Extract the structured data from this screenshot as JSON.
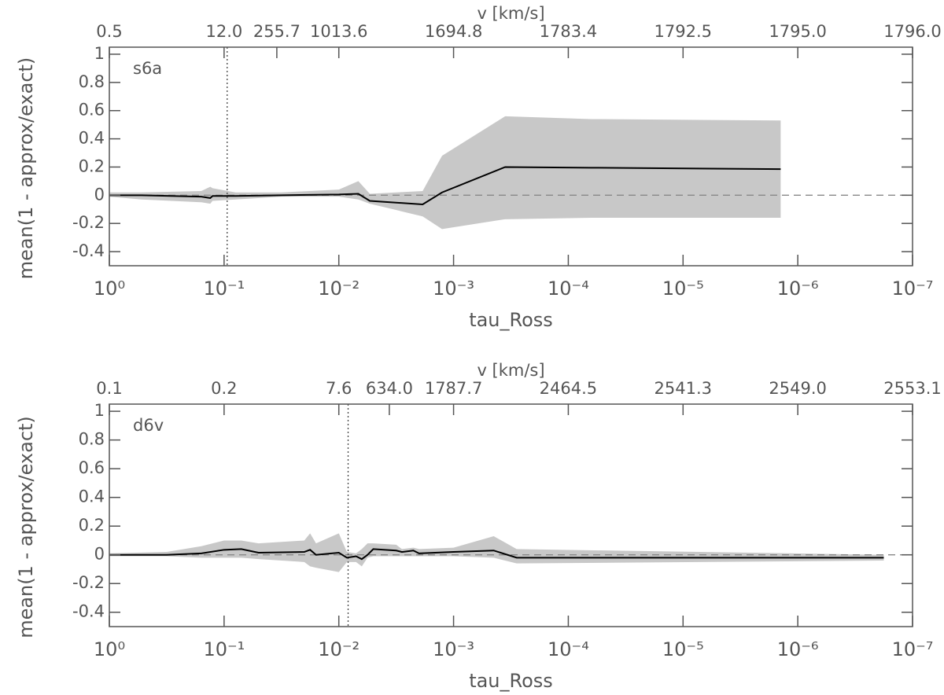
{
  "chart_data": [
    {
      "type": "line",
      "label": "s6a",
      "xlabel": "tau_Ross",
      "ylabel": "mean(1 - approx/exact)",
      "x2label": "v [km/s]",
      "xscale": "log",
      "xlim": [
        1,
        1e-07
      ],
      "ylim": [
        -0.5,
        1.05
      ],
      "xticks": [
        {
          "value": 1,
          "label": "10⁰"
        },
        {
          "value": 0.1,
          "label": "10⁻¹"
        },
        {
          "value": 0.01,
          "label": "10⁻²"
        },
        {
          "value": 0.001,
          "label": "10⁻³"
        },
        {
          "value": 0.0001,
          "label": "10⁻⁴"
        },
        {
          "value": 1e-05,
          "label": "10⁻⁵"
        },
        {
          "value": 1e-06,
          "label": "10⁻⁶"
        },
        {
          "value": 1e-07,
          "label": "10⁻⁷"
        }
      ],
      "x2ticks": [
        {
          "value": 1,
          "label": "0.5"
        },
        {
          "value": 0.1,
          "label": "12.0"
        },
        {
          "value": 0.0347,
          "label": "255.7"
        },
        {
          "value": 0.01,
          "label": "1013.6"
        },
        {
          "value": 0.001,
          "label": "1694.8"
        },
        {
          "value": 0.0001,
          "label": "1783.4"
        },
        {
          "value": 1e-05,
          "label": "1792.5"
        },
        {
          "value": 1e-06,
          "label": "1795.0"
        },
        {
          "value": 1e-07,
          "label": "1796.0"
        }
      ],
      "yticks": [
        -0.4,
        -0.2,
        0.0,
        0.2,
        0.4,
        0.6,
        0.8,
        1.0
      ],
      "hline": 0,
      "vline": 0.094,
      "color": "#000000",
      "band_color": "#c8c8c8",
      "x": [
        1,
        0.525,
        0.158,
        0.132,
        0.126,
        0.0794,
        0.0316,
        0.01,
        0.00676,
        0.00537,
        0.00186,
        0.00126,
        0.000355,
        6.31e-05,
        1.41e-06
      ],
      "values": [
        0,
        0,
        -0.01,
        -0.02,
        -0.005,
        -0.005,
        0,
        0.005,
        0.01,
        -0.04,
        -0.065,
        0.02,
        0.2,
        0.195,
        0.185
      ],
      "upper": [
        0.02,
        0.02,
        0.03,
        0.06,
        0.05,
        0.02,
        0.02,
        0.04,
        0.1,
        0.01,
        0.03,
        0.28,
        0.56,
        0.54,
        0.53
      ],
      "lower": [
        -0.01,
        -0.03,
        -0.05,
        -0.06,
        -0.04,
        -0.03,
        -0.01,
        -0.01,
        -0.03,
        -0.06,
        -0.15,
        -0.24,
        -0.17,
        -0.16,
        -0.16
      ]
    },
    {
      "type": "line",
      "label": "d6v",
      "xlabel": "tau_Ross",
      "ylabel": "mean(1 - approx/exact)",
      "x2label": "v [km/s]",
      "xscale": "log",
      "xlim": [
        1,
        1e-07
      ],
      "ylim": [
        -0.5,
        1.05
      ],
      "xticks": [
        {
          "value": 1,
          "label": "10⁰"
        },
        {
          "value": 0.1,
          "label": "10⁻¹"
        },
        {
          "value": 0.01,
          "label": "10⁻²"
        },
        {
          "value": 0.001,
          "label": "10⁻³"
        },
        {
          "value": 0.0001,
          "label": "10⁻⁴"
        },
        {
          "value": 1e-05,
          "label": "10⁻⁵"
        },
        {
          "value": 1e-06,
          "label": "10⁻⁶"
        },
        {
          "value": 1e-07,
          "label": "10⁻⁷"
        }
      ],
      "x2ticks": [
        {
          "value": 1,
          "label": "0.1"
        },
        {
          "value": 0.1,
          "label": "0.2"
        },
        {
          "value": 0.01,
          "label": "7.6"
        },
        {
          "value": 0.00363,
          "label": "634.0"
        },
        {
          "value": 0.001,
          "label": "1787.7"
        },
        {
          "value": 0.0001,
          "label": "2464.5"
        },
        {
          "value": 1e-05,
          "label": "2541.3"
        },
        {
          "value": 1e-06,
          "label": "2549.0"
        },
        {
          "value": 1e-07,
          "label": "2553.1"
        }
      ],
      "yticks": [
        -0.4,
        -0.2,
        0.0,
        0.2,
        0.4,
        0.6,
        0.8,
        1.0
      ],
      "hline": 0,
      "vline": 0.0083,
      "color": "#000000",
      "band_color": "#c8c8c8",
      "x": [
        1,
        0.316,
        0.158,
        0.1,
        0.0708,
        0.0501,
        0.02,
        0.0178,
        0.0158,
        0.01,
        0.00851,
        0.00708,
        0.00631,
        0.00562,
        0.00501,
        0.00316,
        0.00282,
        0.00224,
        0.002,
        0.001,
        0.000447,
        0.000282,
        1.78e-07
      ],
      "values": [
        0,
        0,
        0.01,
        0.035,
        0.04,
        0.015,
        0.02,
        0.035,
        0,
        0.015,
        -0.02,
        -0.01,
        -0.03,
        0,
        0.04,
        0.03,
        0.02,
        0.03,
        0.01,
        0.02,
        0.03,
        -0.02,
        -0.02
      ],
      "upper": [
        0.01,
        0.02,
        0.06,
        0.1,
        0.1,
        0.08,
        0.1,
        0.15,
        0.08,
        0.15,
        0.02,
        0.01,
        0.04,
        0.08,
        0.08,
        0.07,
        0.04,
        0.05,
        0.04,
        0.05,
        0.13,
        0.04,
        0
      ],
      "lower": [
        -0.01,
        -0.01,
        -0.02,
        -0.02,
        -0.02,
        -0.03,
        -0.05,
        -0.08,
        -0.09,
        -0.12,
        -0.05,
        -0.05,
        -0.08,
        -0.02,
        -0.01,
        -0.01,
        -0.01,
        -0.01,
        -0.01,
        -0.01,
        -0.02,
        -0.06,
        -0.04
      ]
    }
  ]
}
